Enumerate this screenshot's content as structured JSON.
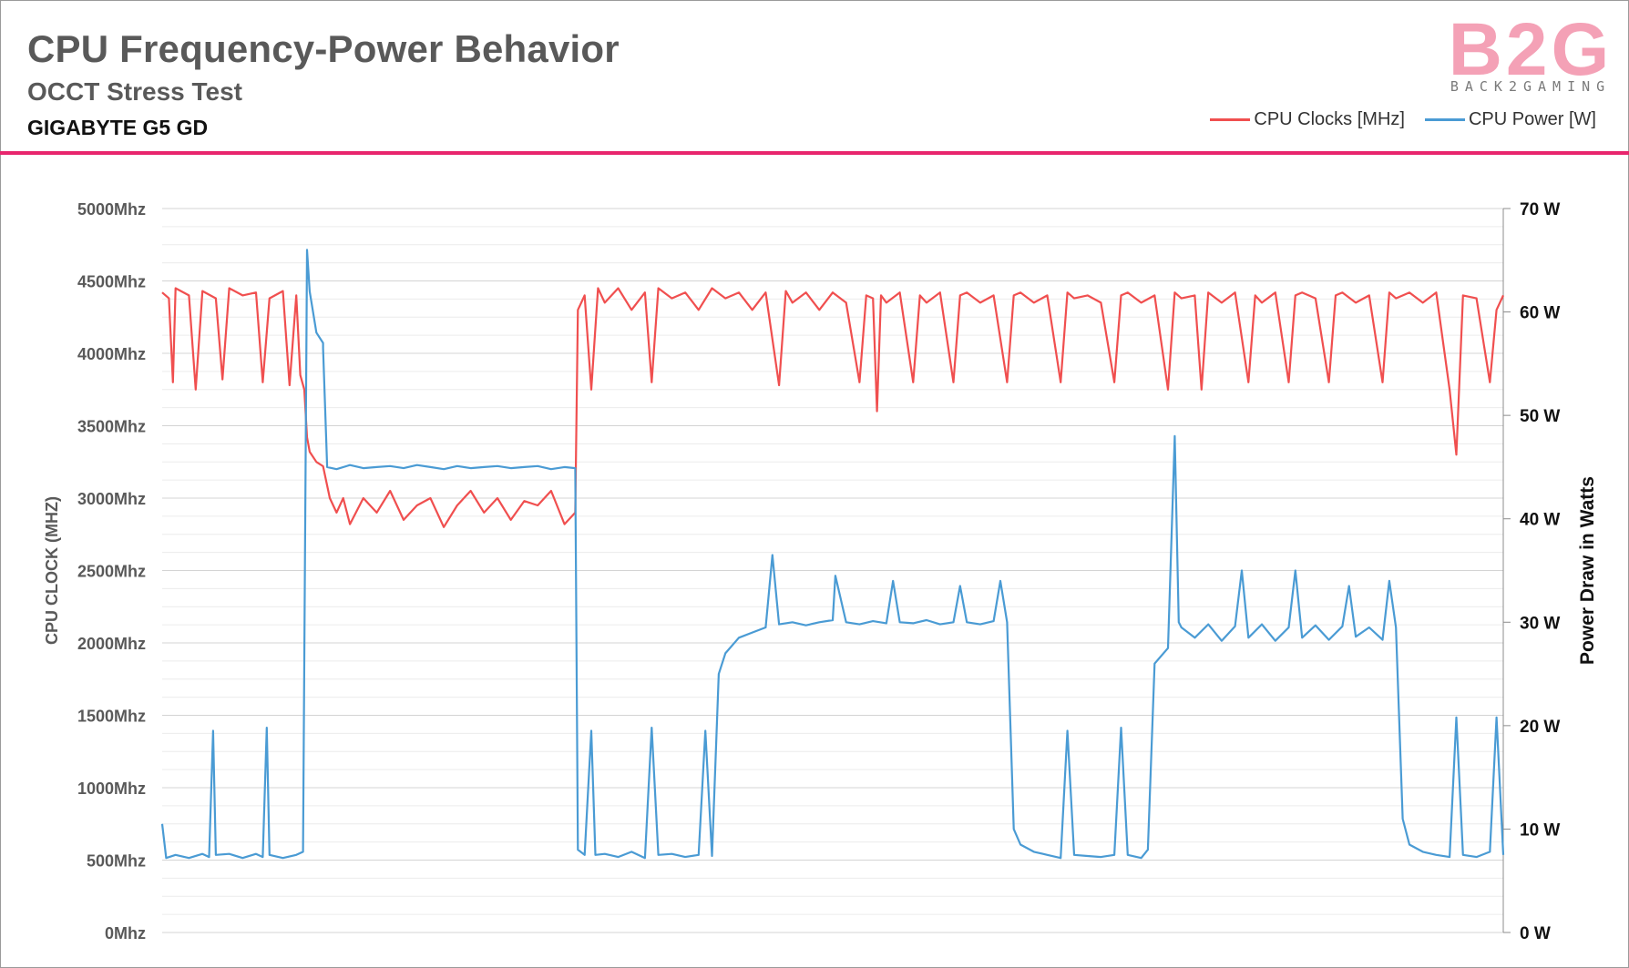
{
  "header": {
    "title": "CPU Frequency-Power Behavior",
    "subtitle": "OCCT Stress Test",
    "device": "GIGABYTE G5 GD",
    "logo_text": "B2G",
    "logo_tagline": "BACK2GAMING"
  },
  "colors": {
    "clock": "#f04f4f",
    "power": "#4a9bd4",
    "accent": "#e8256d"
  },
  "chart_data": {
    "type": "line",
    "title": "CPU Frequency-Power Behavior",
    "subtitle": "OCCT Stress Test",
    "legend_position": "top-right",
    "grid": true,
    "x": {
      "label": "",
      "ticks": [],
      "range": [
        0,
        100
      ]
    },
    "y_left": {
      "label": "CPU CLOCK (MHZ)",
      "range": [
        0,
        5000
      ],
      "ticks": [
        "0Mhz",
        "500Mhz",
        "1000Mhz",
        "1500Mhz",
        "2000Mhz",
        "2500Mhz",
        "3000Mhz",
        "3500Mhz",
        "4000Mhz",
        "4500Mhz",
        "5000Mhz"
      ]
    },
    "y_right": {
      "label": "Power Draw in Watts",
      "range": [
        0,
        70
      ],
      "ticks": [
        "0 W",
        "10 W",
        "20 W",
        "30 W",
        "40 W",
        "50 W",
        "60 W",
        "70 W"
      ]
    },
    "series": [
      {
        "name": "CPU Clocks [MHz]",
        "axis": "left",
        "points": [
          [
            0,
            4420
          ],
          [
            0.5,
            4380
          ],
          [
            0.8,
            3800
          ],
          [
            1,
            4450
          ],
          [
            2,
            4400
          ],
          [
            2.5,
            3750
          ],
          [
            3,
            4430
          ],
          [
            4,
            4380
          ],
          [
            4.5,
            3820
          ],
          [
            5,
            4450
          ],
          [
            6,
            4400
          ],
          [
            7,
            4420
          ],
          [
            7.5,
            3800
          ],
          [
            8,
            4380
          ],
          [
            9,
            4430
          ],
          [
            9.5,
            3780
          ],
          [
            10,
            4400
          ],
          [
            10.3,
            3850
          ],
          [
            10.6,
            3750
          ],
          [
            10.8,
            3420
          ],
          [
            11,
            3320
          ],
          [
            11.5,
            3250
          ],
          [
            12,
            3220
          ],
          [
            12.5,
            3000
          ],
          [
            13,
            2900
          ],
          [
            13.5,
            3000
          ],
          [
            14,
            2820
          ],
          [
            15,
            3000
          ],
          [
            16,
            2900
          ],
          [
            17,
            3050
          ],
          [
            18,
            2850
          ],
          [
            19,
            2950
          ],
          [
            20,
            3000
          ],
          [
            21,
            2800
          ],
          [
            22,
            2950
          ],
          [
            23,
            3050
          ],
          [
            24,
            2900
          ],
          [
            25,
            3000
          ],
          [
            26,
            2850
          ],
          [
            27,
            2980
          ],
          [
            28,
            2950
          ],
          [
            29,
            3050
          ],
          [
            30,
            2820
          ],
          [
            30.8,
            2900
          ],
          [
            31,
            4300
          ],
          [
            31.5,
            4400
          ],
          [
            32,
            3750
          ],
          [
            32.5,
            4450
          ],
          [
            33,
            4350
          ],
          [
            34,
            4450
          ],
          [
            35,
            4300
          ],
          [
            36,
            4420
          ],
          [
            36.5,
            3800
          ],
          [
            37,
            4450
          ],
          [
            38,
            4380
          ],
          [
            39,
            4420
          ],
          [
            40,
            4300
          ],
          [
            41,
            4450
          ],
          [
            42,
            4380
          ],
          [
            43,
            4420
          ],
          [
            44,
            4300
          ],
          [
            45,
            4420
          ],
          [
            46,
            3780
          ],
          [
            46.5,
            4430
          ],
          [
            47,
            4350
          ],
          [
            48,
            4420
          ],
          [
            49,
            4300
          ],
          [
            50,
            4420
          ],
          [
            51,
            4350
          ],
          [
            52,
            3800
          ],
          [
            52.5,
            4400
          ],
          [
            53,
            4380
          ],
          [
            53.3,
            3600
          ],
          [
            53.6,
            4400
          ],
          [
            54,
            4350
          ],
          [
            55,
            4420
          ],
          [
            56,
            3800
          ],
          [
            56.5,
            4400
          ],
          [
            57,
            4350
          ],
          [
            58,
            4420
          ],
          [
            59,
            3800
          ],
          [
            59.5,
            4400
          ],
          [
            60,
            4420
          ],
          [
            61,
            4350
          ],
          [
            62,
            4400
          ],
          [
            63,
            3800
          ],
          [
            63.5,
            4400
          ],
          [
            64,
            4420
          ],
          [
            65,
            4350
          ],
          [
            66,
            4400
          ],
          [
            67,
            3800
          ],
          [
            67.5,
            4420
          ],
          [
            68,
            4380
          ],
          [
            69,
            4400
          ],
          [
            70,
            4350
          ],
          [
            71,
            3800
          ],
          [
            71.5,
            4400
          ],
          [
            72,
            4420
          ],
          [
            73,
            4350
          ],
          [
            74,
            4400
          ],
          [
            75,
            3750
          ],
          [
            75.5,
            4420
          ],
          [
            76,
            4380
          ],
          [
            77,
            4400
          ],
          [
            77.5,
            3750
          ],
          [
            78,
            4420
          ],
          [
            79,
            4350
          ],
          [
            80,
            4420
          ],
          [
            81,
            3800
          ],
          [
            81.5,
            4400
          ],
          [
            82,
            4350
          ],
          [
            83,
            4420
          ],
          [
            84,
            3800
          ],
          [
            84.5,
            4400
          ],
          [
            85,
            4420
          ],
          [
            86,
            4380
          ],
          [
            87,
            3800
          ],
          [
            87.5,
            4400
          ],
          [
            88,
            4420
          ],
          [
            89,
            4350
          ],
          [
            90,
            4400
          ],
          [
            91,
            3800
          ],
          [
            91.5,
            4420
          ],
          [
            92,
            4380
          ],
          [
            93,
            4420
          ],
          [
            94,
            4350
          ],
          [
            95,
            4420
          ],
          [
            96,
            3750
          ],
          [
            96.5,
            3300
          ],
          [
            97,
            4400
          ],
          [
            98,
            4380
          ],
          [
            99,
            3800
          ],
          [
            99.5,
            4300
          ],
          [
            100,
            4400
          ]
        ]
      },
      {
        "name": "CPU  Power [W]",
        "axis": "right",
        "points": [
          [
            0,
            10.5
          ],
          [
            0.3,
            7.2
          ],
          [
            1,
            7.5
          ],
          [
            2,
            7.2
          ],
          [
            3,
            7.6
          ],
          [
            3.5,
            7.3
          ],
          [
            3.8,
            19.5
          ],
          [
            4,
            7.5
          ],
          [
            5,
            7.6
          ],
          [
            6,
            7.2
          ],
          [
            7,
            7.6
          ],
          [
            7.5,
            7.3
          ],
          [
            7.8,
            19.8
          ],
          [
            8,
            7.5
          ],
          [
            9,
            7.2
          ],
          [
            10,
            7.5
          ],
          [
            10.5,
            7.8
          ],
          [
            10.8,
            66
          ],
          [
            11,
            62
          ],
          [
            11.5,
            58
          ],
          [
            12,
            57
          ],
          [
            12,
            56.5
          ],
          [
            12.3,
            45
          ],
          [
            13,
            44.8
          ],
          [
            14,
            45.2
          ],
          [
            15,
            44.9
          ],
          [
            16,
            45
          ],
          [
            17,
            45.1
          ],
          [
            18,
            44.9
          ],
          [
            19,
            45.2
          ],
          [
            20,
            45
          ],
          [
            21,
            44.8
          ],
          [
            22,
            45.1
          ],
          [
            23,
            44.9
          ],
          [
            24,
            45
          ],
          [
            25,
            45.1
          ],
          [
            26,
            44.9
          ],
          [
            27,
            45
          ],
          [
            28,
            45.1
          ],
          [
            29,
            44.8
          ],
          [
            30,
            45
          ],
          [
            30.8,
            44.9
          ],
          [
            31,
            8
          ],
          [
            31.5,
            7.5
          ],
          [
            32,
            19.5
          ],
          [
            32.3,
            7.5
          ],
          [
            33,
            7.6
          ],
          [
            34,
            7.3
          ],
          [
            35,
            7.8
          ],
          [
            36,
            7.2
          ],
          [
            36.5,
            19.8
          ],
          [
            37,
            7.5
          ],
          [
            38,
            7.6
          ],
          [
            39,
            7.3
          ],
          [
            40,
            7.5
          ],
          [
            40.5,
            19.5
          ],
          [
            41,
            7.4
          ],
          [
            41.5,
            25
          ],
          [
            42,
            27
          ],
          [
            43,
            28.5
          ],
          [
            44,
            29
          ],
          [
            45,
            29.5
          ],
          [
            45.5,
            36.5
          ],
          [
            46,
            29.8
          ],
          [
            47,
            30
          ],
          [
            48,
            29.7
          ],
          [
            49,
            30
          ],
          [
            50,
            30.2
          ],
          [
            50.2,
            34.5
          ],
          [
            51,
            30
          ],
          [
            52,
            29.8
          ],
          [
            53,
            30.1
          ],
          [
            54,
            29.9
          ],
          [
            54.5,
            34
          ],
          [
            55,
            30
          ],
          [
            56,
            29.9
          ],
          [
            57,
            30.2
          ],
          [
            58,
            29.8
          ],
          [
            59,
            30
          ],
          [
            59.5,
            33.5
          ],
          [
            60,
            30
          ],
          [
            61,
            29.8
          ],
          [
            62,
            30.1
          ],
          [
            62.5,
            34
          ],
          [
            63,
            30
          ],
          [
            63.5,
            10
          ],
          [
            64,
            8.5
          ],
          [
            65,
            7.8
          ],
          [
            66,
            7.5
          ],
          [
            67,
            7.2
          ],
          [
            67.5,
            19.5
          ],
          [
            68,
            7.5
          ],
          [
            69,
            7.4
          ],
          [
            70,
            7.3
          ],
          [
            71,
            7.5
          ],
          [
            71.5,
            19.8
          ],
          [
            72,
            7.5
          ],
          [
            73,
            7.2
          ],
          [
            73.5,
            8
          ],
          [
            74,
            26
          ],
          [
            75,
            27.5
          ],
          [
            75.5,
            48
          ],
          [
            75.8,
            30
          ],
          [
            76,
            29.5
          ],
          [
            77,
            28.5
          ],
          [
            78,
            29.8
          ],
          [
            79,
            28.2
          ],
          [
            80,
            29.6
          ],
          [
            80.5,
            35
          ],
          [
            81,
            28.5
          ],
          [
            82,
            29.8
          ],
          [
            83,
            28.2
          ],
          [
            84,
            29.5
          ],
          [
            84.5,
            35
          ],
          [
            85,
            28.5
          ],
          [
            86,
            29.7
          ],
          [
            87,
            28.3
          ],
          [
            88,
            29.6
          ],
          [
            88.5,
            33.5
          ],
          [
            89,
            28.6
          ],
          [
            90,
            29.5
          ],
          [
            91,
            28.3
          ],
          [
            91.5,
            34
          ],
          [
            92,
            29.5
          ],
          [
            92.5,
            11
          ],
          [
            93,
            8.5
          ],
          [
            94,
            7.8
          ],
          [
            95,
            7.5
          ],
          [
            96,
            7.3
          ],
          [
            96.5,
            20.8
          ],
          [
            97,
            7.5
          ],
          [
            98,
            7.3
          ],
          [
            99,
            7.8
          ],
          [
            99.5,
            20.8
          ],
          [
            100,
            7.5
          ]
        ]
      }
    ]
  }
}
